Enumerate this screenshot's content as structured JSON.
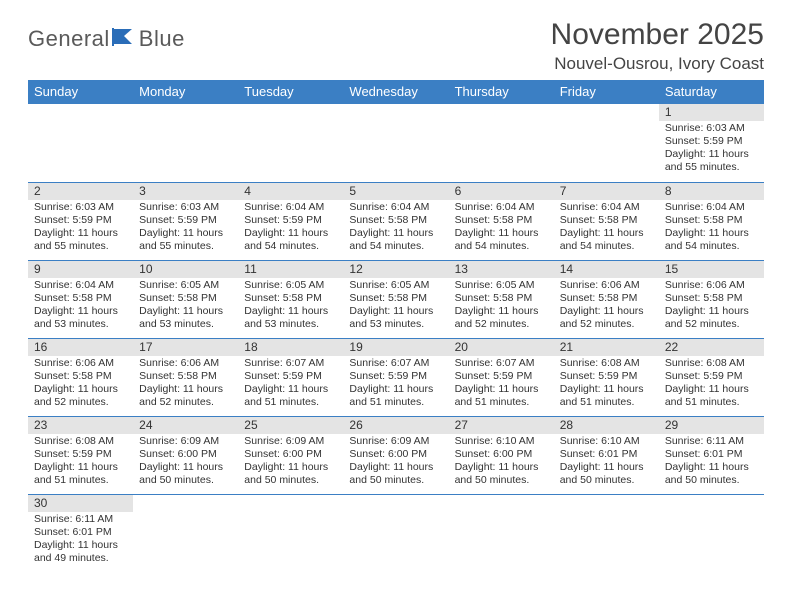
{
  "logo": {
    "word1": "General",
    "word2": "Blue"
  },
  "title": "November 2025",
  "location": "Nouvel-Ousrou, Ivory Coast",
  "headers": [
    "Sunday",
    "Monday",
    "Tuesday",
    "Wednesday",
    "Thursday",
    "Friday",
    "Saturday"
  ],
  "colors": {
    "header_bg": "#3b7fc4",
    "header_fg": "#ffffff",
    "daynum_bg": "#e4e4e4",
    "border": "#3b7fc4",
    "text": "#333333",
    "logo_gray": "#5a5a5a",
    "logo_blue": "#2a6db8"
  },
  "weeks": [
    [
      null,
      null,
      null,
      null,
      null,
      null,
      {
        "n": "1",
        "sr": "Sunrise: 6:03 AM",
        "ss": "Sunset: 5:59 PM",
        "dl": "Daylight: 11 hours and 55 minutes."
      }
    ],
    [
      {
        "n": "2",
        "sr": "Sunrise: 6:03 AM",
        "ss": "Sunset: 5:59 PM",
        "dl": "Daylight: 11 hours and 55 minutes."
      },
      {
        "n": "3",
        "sr": "Sunrise: 6:03 AM",
        "ss": "Sunset: 5:59 PM",
        "dl": "Daylight: 11 hours and 55 minutes."
      },
      {
        "n": "4",
        "sr": "Sunrise: 6:04 AM",
        "ss": "Sunset: 5:59 PM",
        "dl": "Daylight: 11 hours and 54 minutes."
      },
      {
        "n": "5",
        "sr": "Sunrise: 6:04 AM",
        "ss": "Sunset: 5:58 PM",
        "dl": "Daylight: 11 hours and 54 minutes."
      },
      {
        "n": "6",
        "sr": "Sunrise: 6:04 AM",
        "ss": "Sunset: 5:58 PM",
        "dl": "Daylight: 11 hours and 54 minutes."
      },
      {
        "n": "7",
        "sr": "Sunrise: 6:04 AM",
        "ss": "Sunset: 5:58 PM",
        "dl": "Daylight: 11 hours and 54 minutes."
      },
      {
        "n": "8",
        "sr": "Sunrise: 6:04 AM",
        "ss": "Sunset: 5:58 PM",
        "dl": "Daylight: 11 hours and 54 minutes."
      }
    ],
    [
      {
        "n": "9",
        "sr": "Sunrise: 6:04 AM",
        "ss": "Sunset: 5:58 PM",
        "dl": "Daylight: 11 hours and 53 minutes."
      },
      {
        "n": "10",
        "sr": "Sunrise: 6:05 AM",
        "ss": "Sunset: 5:58 PM",
        "dl": "Daylight: 11 hours and 53 minutes."
      },
      {
        "n": "11",
        "sr": "Sunrise: 6:05 AM",
        "ss": "Sunset: 5:58 PM",
        "dl": "Daylight: 11 hours and 53 minutes."
      },
      {
        "n": "12",
        "sr": "Sunrise: 6:05 AM",
        "ss": "Sunset: 5:58 PM",
        "dl": "Daylight: 11 hours and 53 minutes."
      },
      {
        "n": "13",
        "sr": "Sunrise: 6:05 AM",
        "ss": "Sunset: 5:58 PM",
        "dl": "Daylight: 11 hours and 52 minutes."
      },
      {
        "n": "14",
        "sr": "Sunrise: 6:06 AM",
        "ss": "Sunset: 5:58 PM",
        "dl": "Daylight: 11 hours and 52 minutes."
      },
      {
        "n": "15",
        "sr": "Sunrise: 6:06 AM",
        "ss": "Sunset: 5:58 PM",
        "dl": "Daylight: 11 hours and 52 minutes."
      }
    ],
    [
      {
        "n": "16",
        "sr": "Sunrise: 6:06 AM",
        "ss": "Sunset: 5:58 PM",
        "dl": "Daylight: 11 hours and 52 minutes."
      },
      {
        "n": "17",
        "sr": "Sunrise: 6:06 AM",
        "ss": "Sunset: 5:58 PM",
        "dl": "Daylight: 11 hours and 52 minutes."
      },
      {
        "n": "18",
        "sr": "Sunrise: 6:07 AM",
        "ss": "Sunset: 5:59 PM",
        "dl": "Daylight: 11 hours and 51 minutes."
      },
      {
        "n": "19",
        "sr": "Sunrise: 6:07 AM",
        "ss": "Sunset: 5:59 PM",
        "dl": "Daylight: 11 hours and 51 minutes."
      },
      {
        "n": "20",
        "sr": "Sunrise: 6:07 AM",
        "ss": "Sunset: 5:59 PM",
        "dl": "Daylight: 11 hours and 51 minutes."
      },
      {
        "n": "21",
        "sr": "Sunrise: 6:08 AM",
        "ss": "Sunset: 5:59 PM",
        "dl": "Daylight: 11 hours and 51 minutes."
      },
      {
        "n": "22",
        "sr": "Sunrise: 6:08 AM",
        "ss": "Sunset: 5:59 PM",
        "dl": "Daylight: 11 hours and 51 minutes."
      }
    ],
    [
      {
        "n": "23",
        "sr": "Sunrise: 6:08 AM",
        "ss": "Sunset: 5:59 PM",
        "dl": "Daylight: 11 hours and 51 minutes."
      },
      {
        "n": "24",
        "sr": "Sunrise: 6:09 AM",
        "ss": "Sunset: 6:00 PM",
        "dl": "Daylight: 11 hours and 50 minutes."
      },
      {
        "n": "25",
        "sr": "Sunrise: 6:09 AM",
        "ss": "Sunset: 6:00 PM",
        "dl": "Daylight: 11 hours and 50 minutes."
      },
      {
        "n": "26",
        "sr": "Sunrise: 6:09 AM",
        "ss": "Sunset: 6:00 PM",
        "dl": "Daylight: 11 hours and 50 minutes."
      },
      {
        "n": "27",
        "sr": "Sunrise: 6:10 AM",
        "ss": "Sunset: 6:00 PM",
        "dl": "Daylight: 11 hours and 50 minutes."
      },
      {
        "n": "28",
        "sr": "Sunrise: 6:10 AM",
        "ss": "Sunset: 6:01 PM",
        "dl": "Daylight: 11 hours and 50 minutes."
      },
      {
        "n": "29",
        "sr": "Sunrise: 6:11 AM",
        "ss": "Sunset: 6:01 PM",
        "dl": "Daylight: 11 hours and 50 minutes."
      }
    ],
    [
      {
        "n": "30",
        "sr": "Sunrise: 6:11 AM",
        "ss": "Sunset: 6:01 PM",
        "dl": "Daylight: 11 hours and 49 minutes."
      },
      null,
      null,
      null,
      null,
      null,
      null
    ]
  ]
}
